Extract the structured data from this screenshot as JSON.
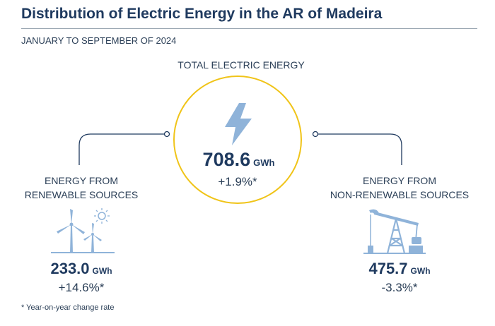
{
  "header": {
    "title": "Distribution of Electric Energy in the AR of Madeira",
    "subtitle": "JANUARY TO SEPTEMBER OF 2024"
  },
  "total": {
    "label": "TOTAL ELECTRIC ENERGY",
    "value": "708.6",
    "unit": "GWh",
    "change": "+1.9%*",
    "icon": "lightning-bolt-icon"
  },
  "renewable": {
    "label_line1": "ENERGY FROM",
    "label_line2": "RENEWABLE SOURCES",
    "value": "233.0",
    "unit": "GWh",
    "change": "+14.6%*",
    "icon": "wind-turbines-sun-icon"
  },
  "non_renewable": {
    "label_line1": "ENERGY FROM",
    "label_line2": "NON-RENEWABLE SOURCES",
    "value": "475.7",
    "unit": "GWh",
    "change": "-3.3%*",
    "icon": "oil-pump-jack-icon"
  },
  "footnote": "* Year-on-year change rate",
  "colors": {
    "title": "#1f3a5f",
    "accent_yellow": "#f0c419",
    "icon_blue": "#8fb3d9",
    "connector": "#1f3a5f"
  }
}
